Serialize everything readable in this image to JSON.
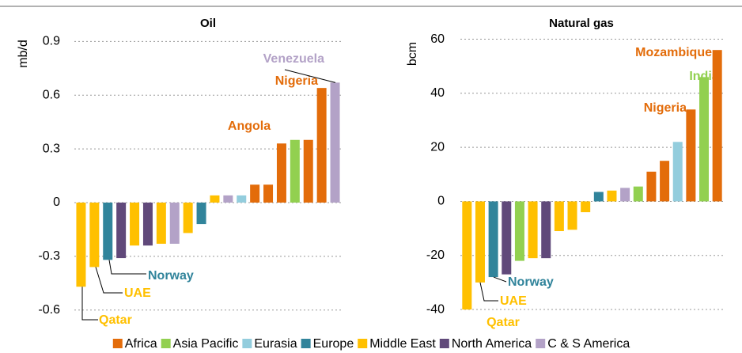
{
  "legend": [
    {
      "name": "Africa",
      "color": "#e36c0a"
    },
    {
      "name": "Asia Pacific",
      "color": "#92d050"
    },
    {
      "name": "Eurasia",
      "color": "#93cddd"
    },
    {
      "name": "Europe",
      "color": "#31849b"
    },
    {
      "name": "Middle East",
      "color": "#ffc000"
    },
    {
      "name": "North America",
      "color": "#60497a"
    },
    {
      "name": "C & S America",
      "color": "#b3a2c7"
    }
  ],
  "chart_data": [
    {
      "type": "bar",
      "title": "Oil",
      "y_label": "mb/d",
      "categories": [
        "Qatar",
        "UAE",
        "Norway",
        null,
        null,
        null,
        null,
        null,
        null,
        null,
        null,
        null,
        null,
        null,
        null,
        "Angola",
        null,
        null,
        "Nigeria",
        "Venezuela"
      ],
      "values": [
        -0.47,
        -0.36,
        -0.32,
        -0.31,
        -0.24,
        -0.24,
        -0.23,
        -0.23,
        -0.17,
        -0.12,
        0.04,
        0.04,
        0.04,
        0.1,
        0.1,
        0.33,
        0.35,
        0.35,
        0.64,
        0.67
      ],
      "colors": [
        "#ffc000",
        "#ffc000",
        "#31849b",
        "#60497a",
        "#ffc000",
        "#60497a",
        "#ffc000",
        "#b3a2c7",
        "#ffc000",
        "#31849b",
        "#ffc000",
        "#b3a2c7",
        "#93cddd",
        "#e36c0a",
        "#e36c0a",
        "#e36c0a",
        "#92d050",
        "#e36c0a",
        "#e36c0a",
        "#b3a2c7"
      ],
      "ylim": [
        -0.65,
        0.95
      ],
      "yticks": [
        -0.6,
        -0.3,
        0,
        0.3,
        0.6,
        0.9
      ],
      "grid": true
    },
    {
      "type": "bar",
      "title": "Natural gas",
      "y_label": "bcm",
      "categories": [
        "Qatar",
        "UAE",
        "Norway",
        null,
        null,
        null,
        null,
        null,
        null,
        null,
        null,
        null,
        null,
        null,
        null,
        null,
        null,
        "Nigeria",
        "India",
        "Mozambique"
      ],
      "values": [
        -40,
        -30,
        -28,
        -27,
        -22,
        -21,
        -21,
        -11,
        -10.5,
        -4,
        3.5,
        4,
        5,
        5.5,
        11,
        15,
        22,
        34,
        46,
        56
      ],
      "colors": [
        "#ffc000",
        "#ffc000",
        "#31849b",
        "#60497a",
        "#92d050",
        "#ffc000",
        "#60497a",
        "#ffc000",
        "#ffc000",
        "#ffc000",
        "#31849b",
        "#ffc000",
        "#b3a2c7",
        "#92d050",
        "#e36c0a",
        "#e36c0a",
        "#93cddd",
        "#e36c0a",
        "#92d050",
        "#e36c0a"
      ],
      "ylim": [
        -43.5,
        62.5
      ],
      "yticks": [
        -40,
        -20,
        0,
        20,
        40,
        60
      ],
      "grid": true
    }
  ]
}
